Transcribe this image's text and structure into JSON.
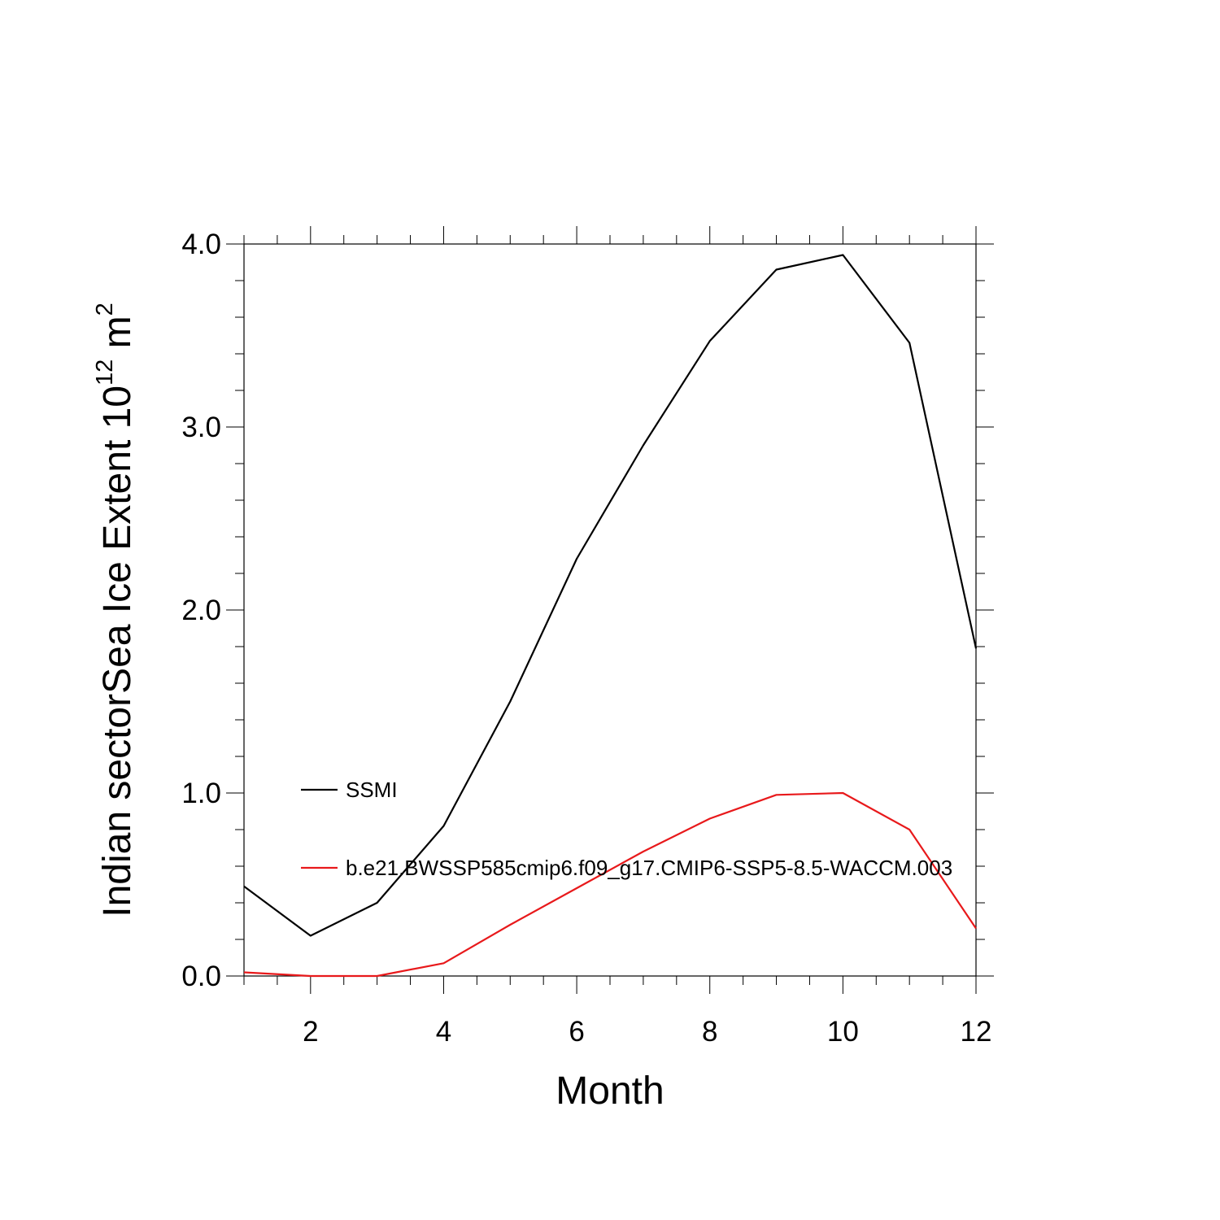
{
  "chart_data": {
    "type": "line",
    "title": "",
    "xlabel": "Month",
    "ylabel": {
      "prefix": "Indian sectorSea Ice Extent 10",
      "exponent1": "12",
      "unit": " m",
      "exponent2": "2"
    },
    "xlim": [
      1,
      12
    ],
    "ylim": [
      0,
      4
    ],
    "x_ticks": [
      2,
      4,
      6,
      8,
      10,
      12
    ],
    "x_tick_labels": [
      "2",
      "4",
      "6",
      "8",
      "10",
      "12"
    ],
    "y_ticks": [
      0,
      1,
      2,
      3,
      4
    ],
    "y_tick_labels": [
      "0.0",
      "1.0",
      "2.0",
      "3.0",
      "4.0"
    ],
    "grid": false,
    "legend_placement": "left-middle",
    "x": [
      1,
      2,
      3,
      4,
      5,
      6,
      7,
      8,
      9,
      10,
      11,
      12
    ],
    "series": [
      {
        "name": "SSMI",
        "color": "#000000",
        "values": [
          0.49,
          0.22,
          0.4,
          0.82,
          1.5,
          2.28,
          2.9,
          3.47,
          3.86,
          3.94,
          3.46,
          1.79
        ]
      },
      {
        "name": "b.e21.BWSSP585cmip6.f09_g17.CMIP6-SSP5-8.5-WACCM.003",
        "color": "#e8191b",
        "values": [
          0.02,
          0.0,
          0.0,
          0.07,
          0.28,
          0.48,
          0.68,
          0.86,
          0.99,
          1.0,
          0.8,
          0.26
        ]
      }
    ]
  }
}
